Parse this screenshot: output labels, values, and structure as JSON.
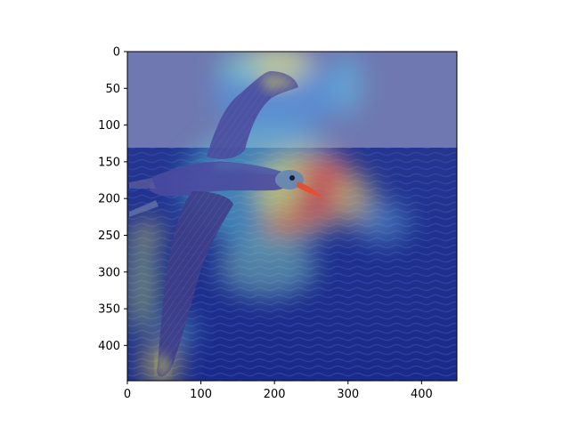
{
  "chart_data": {
    "type": "heatmap",
    "title": "",
    "xlabel": "",
    "ylabel": "",
    "xlim": [
      0,
      448
    ],
    "ylim": [
      448,
      0
    ],
    "x_ticks": [
      0,
      100,
      200,
      300,
      400
    ],
    "y_ticks": [
      0,
      50,
      100,
      150,
      200,
      250,
      300,
      350,
      400
    ],
    "x_tick_labels": [
      "0",
      "100",
      "200",
      "300",
      "400"
    ],
    "y_tick_labels": [
      "0",
      "50",
      "100",
      "150",
      "200",
      "250",
      "300",
      "350",
      "400"
    ],
    "colormap": "jet",
    "overlay_alpha": 0.5,
    "subject": "albatross in flight over ocean",
    "colors": {
      "sky": "#707ab0",
      "sea": "#1e2c8c",
      "bird_body": "#4a4a9a",
      "beak": "#e0503a"
    },
    "activation_hotspots": [
      {
        "x": 290,
        "y": 180,
        "level": 1.0
      },
      {
        "x": 270,
        "y": 230,
        "level": 0.9
      },
      {
        "x": 200,
        "y": 30,
        "level": 0.55
      },
      {
        "x": 345,
        "y": 175,
        "level": 0.6
      },
      {
        "x": 65,
        "y": 415,
        "level": 0.7
      },
      {
        "x": 20,
        "y": 260,
        "level": 0.45
      }
    ]
  }
}
